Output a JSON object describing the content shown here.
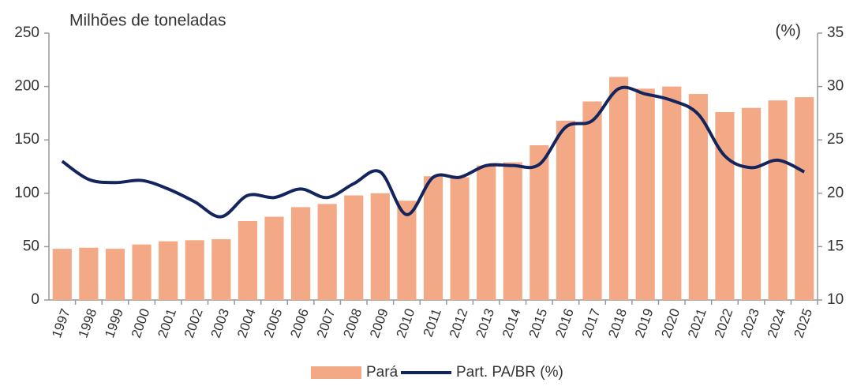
{
  "chart_data": {
    "type": "bar_line",
    "y_label": "Milhões de toneladas",
    "y2_label": "(%)",
    "categories": [
      "1997",
      "1998",
      "1999",
      "2000",
      "2001",
      "2002",
      "2003",
      "2004",
      "2005",
      "2006",
      "2007",
      "2008",
      "2009",
      "2010",
      "2011",
      "2012",
      "2013",
      "2014",
      "2015",
      "2016",
      "2017",
      "2018",
      "2019",
      "2020",
      "2021",
      "2022",
      "2023",
      "2024",
      "2025"
    ],
    "series": [
      {
        "name": "Pará",
        "type": "bar",
        "color": "#f4a986",
        "values": [
          48,
          49,
          48,
          52,
          55,
          56,
          57,
          74,
          78,
          87,
          90,
          98,
          100,
          93,
          116,
          115,
          126,
          129,
          145,
          168,
          186,
          209,
          198,
          200,
          193,
          176,
          180,
          187,
          190
        ]
      },
      {
        "name": "Part. PA/BR (%)",
        "type": "line",
        "axis": "y2",
        "color": "#14255e",
        "values": [
          23.0,
          21.3,
          21.0,
          21.2,
          20.4,
          19.2,
          17.8,
          19.8,
          19.6,
          20.4,
          19.6,
          20.9,
          22.0,
          18.0,
          21.5,
          21.5,
          22.6,
          22.6,
          22.7,
          26.2,
          26.8,
          29.8,
          29.3,
          28.7,
          27.4,
          23.5,
          22.4,
          23.1,
          22.0
        ]
      }
    ],
    "ylim": [
      0,
      250
    ],
    "yticks": [
      0,
      50,
      100,
      150,
      200,
      250
    ],
    "y2lim": [
      10,
      35
    ],
    "y2ticks": [
      10,
      15,
      20,
      25,
      30,
      35
    ],
    "legend": "bottom"
  }
}
